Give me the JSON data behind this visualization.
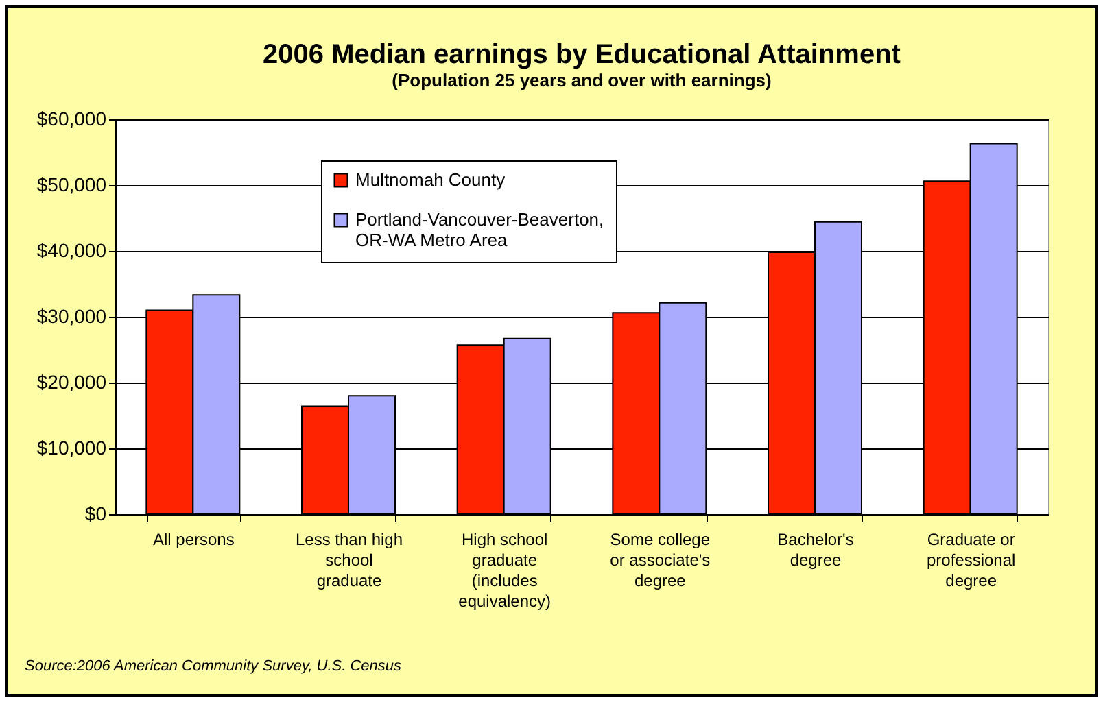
{
  "chart_data": {
    "type": "bar",
    "title": "2006 Median earnings by Educational Attainment",
    "subtitle": "(Population 25 years and over with earnings)",
    "categories": [
      "All persons",
      "Less than high\nschool\ngraduate",
      "High school\ngraduate\n(includes\nequivalency)",
      "Some college\nor associate's\ndegree",
      "Bachelor's\ndegree",
      "Graduate or\nprofessional\ndegree"
    ],
    "series": [
      {
        "name": "Multnomah County",
        "color": "#ff2200",
        "values": [
          31000,
          16400,
          25700,
          30600,
          39800,
          50600
        ]
      },
      {
        "name": "Portland-Vancouver-Beaverton,\nOR-WA Metro Area",
        "color": "#aaaaff",
        "values": [
          33300,
          18000,
          26700,
          32100,
          44400,
          56300
        ]
      }
    ],
    "ylim": [
      0,
      60000
    ],
    "yticks": [
      {
        "value": 0,
        "label": "$0"
      },
      {
        "value": 10000,
        "label": "$10,000"
      },
      {
        "value": 20000,
        "label": "$20,000"
      },
      {
        "value": 30000,
        "label": "$30,000"
      },
      {
        "value": 40000,
        "label": "$40,000"
      },
      {
        "value": 50000,
        "label": "$50,000"
      },
      {
        "value": 60000,
        "label": "$60,000"
      }
    ],
    "grid": "y",
    "legend": "top left",
    "annotations": [
      "Source:2006 American Community Survey, U.S. Census"
    ]
  }
}
